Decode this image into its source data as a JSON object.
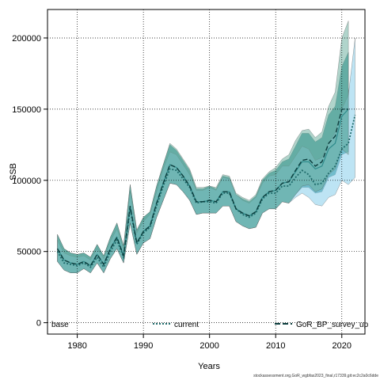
{
  "chart_data": {
    "type": "line",
    "title": "",
    "xlabel": "Years",
    "ylabel": "SSB",
    "xlim": [
      1975.5,
      2023.5
    ],
    "ylim": [
      -8000,
      220000
    ],
    "x_ticks": [
      1980,
      1990,
      2000,
      2010,
      2020
    ],
    "y_ticks": [
      0,
      50000,
      100000,
      150000,
      200000
    ],
    "grid": true,
    "legend_position": "bottom",
    "colors": {
      "base": "#2e8b8b",
      "base_band": "#3a9a9a",
      "current": "#1f6b6b",
      "current_band": "#87ceeb",
      "survey_up": "#0b3d3d",
      "survey_up_band": "#6fb0a0",
      "survey_up_band_top": "#b0a070"
    },
    "series": [
      {
        "name": "base",
        "x": [
          1977,
          1978,
          1979,
          1980,
          1981,
          1982,
          1983,
          1984,
          1985,
          1986,
          1987,
          1988,
          1989,
          1990,
          1991,
          1992,
          1993,
          1994,
          1995,
          1996,
          1997,
          1998,
          1999,
          2000,
          2001,
          2002,
          2003,
          2004,
          2005,
          2006,
          2007,
          2008,
          2009,
          2010,
          2011,
          2012,
          2013,
          2014,
          2015,
          2016,
          2017,
          2018,
          2019,
          2020,
          2021
        ],
        "values": [
          52000,
          44000,
          42000,
          41000,
          43000,
          40000,
          48000,
          41000,
          52000,
          60000,
          47000,
          82000,
          56000,
          64000,
          68000,
          84000,
          98000,
          111000,
          109000,
          103000,
          96000,
          85000,
          85000,
          86000,
          85000,
          92000,
          92000,
          80000,
          77000,
          75000,
          78000,
          88000,
          92000,
          93000,
          98000,
          99000,
          106000,
          113000,
          113000,
          108000,
          110000,
          122000,
          126000,
          145000,
          150000
        ],
        "lower": [
          43000,
          37000,
          35000,
          35000,
          38000,
          35000,
          42000,
          35000,
          45000,
          52000,
          42000,
          70000,
          48000,
          56000,
          59000,
          74000,
          86000,
          98000,
          97000,
          92000,
          86000,
          76000,
          77000,
          77000,
          77000,
          82000,
          82000,
          71000,
          68000,
          66000,
          67000,
          77000,
          80000,
          80000,
          85000,
          84000,
          90000,
          95000,
          95000,
          91000,
          92000,
          102000,
          104000,
          118000,
          120000
        ],
        "upper": [
          62000,
          52000,
          49000,
          48000,
          49000,
          46000,
          55000,
          47000,
          60000,
          70000,
          54000,
          97000,
          65000,
          74000,
          78000,
          96000,
          111000,
          125000,
          121000,
          114000,
          107000,
          94000,
          94000,
          96000,
          94000,
          103000,
          102000,
          90000,
          87000,
          85000,
          89000,
          100000,
          105000,
          107000,
          113000,
          115000,
          124000,
          133000,
          133000,
          127000,
          130000,
          146000,
          152000,
          180000,
          190000
        ]
      },
      {
        "name": "current",
        "x": [
          1977,
          1978,
          1979,
          1980,
          1981,
          1982,
          1983,
          1984,
          1985,
          1986,
          1987,
          1988,
          1989,
          1990,
          1991,
          1992,
          1993,
          1994,
          1995,
          1996,
          1997,
          1998,
          1999,
          2000,
          2001,
          2002,
          2003,
          2004,
          2005,
          2006,
          2007,
          2008,
          2009,
          2010,
          2011,
          2012,
          2013,
          2014,
          2015,
          2016,
          2017,
          2018,
          2019,
          2020,
          2021,
          2022
        ],
        "values": [
          50000,
          42000,
          41000,
          40000,
          42000,
          39000,
          46000,
          39000,
          50000,
          58000,
          46000,
          80000,
          55000,
          63000,
          67000,
          82000,
          96000,
          108000,
          107000,
          101000,
          95000,
          84000,
          85000,
          85000,
          84000,
          91000,
          91000,
          80000,
          76000,
          74000,
          77000,
          87000,
          91000,
          91000,
          96000,
          96000,
          102000,
          107000,
          104000,
          97000,
          98000,
          105000,
          110000,
          122000,
          126000,
          146000
        ],
        "lower": [
          43000,
          37000,
          35000,
          35000,
          38000,
          35000,
          42000,
          35000,
          45000,
          52000,
          42000,
          70000,
          48000,
          56000,
          59000,
          74000,
          86000,
          98000,
          97000,
          92000,
          86000,
          76000,
          77000,
          77000,
          77000,
          82000,
          82000,
          71000,
          68000,
          66000,
          67000,
          77000,
          80000,
          80000,
          85000,
          84000,
          88000,
          91000,
          88000,
          83000,
          82000,
          88000,
          90000,
          100000,
          97000,
          102000
        ],
        "upper": [
          58000,
          49000,
          47000,
          46000,
          47000,
          44000,
          52000,
          45000,
          57000,
          66000,
          52000,
          92000,
          63000,
          71000,
          76000,
          92000,
          108000,
          120000,
          118000,
          111000,
          104000,
          93000,
          93000,
          95000,
          93000,
          102000,
          101000,
          90000,
          86000,
          84000,
          88000,
          98000,
          103000,
          104000,
          110000,
          110000,
          117000,
          124000,
          122000,
          114000,
          116000,
          126000,
          134000,
          150000,
          160000,
          200000
        ]
      },
      {
        "name": "GoR_BP_survey_up",
        "x": [
          1977,
          1978,
          1979,
          1980,
          1981,
          1982,
          1983,
          1984,
          1985,
          1986,
          1987,
          1988,
          1989,
          1990,
          1991,
          1992,
          1993,
          1994,
          1995,
          1996,
          1997,
          1998,
          1999,
          2000,
          2001,
          2002,
          2003,
          2004,
          2005,
          2006,
          2007,
          2008,
          2009,
          2010,
          2011,
          2012,
          2013,
          2014,
          2015,
          2016,
          2017,
          2018,
          2019,
          2020,
          2021
        ],
        "values": [
          52000,
          44000,
          42000,
          41000,
          43000,
          40000,
          48000,
          41000,
          52000,
          60000,
          47000,
          82000,
          56000,
          64000,
          68000,
          84000,
          98000,
          111000,
          109000,
          103000,
          96000,
          85000,
          85000,
          86000,
          85000,
          92000,
          92000,
          80000,
          77000,
          75000,
          78000,
          88000,
          92000,
          93000,
          98000,
          99000,
          107000,
          114000,
          115000,
          110000,
          113000,
          126000,
          131000,
          150000,
          150000
        ],
        "lower": [
          43000,
          37000,
          35000,
          35000,
          38000,
          35000,
          42000,
          35000,
          45000,
          52000,
          42000,
          70000,
          48000,
          56000,
          59000,
          74000,
          86000,
          98000,
          97000,
          92000,
          86000,
          76000,
          77000,
          77000,
          77000,
          82000,
          82000,
          71000,
          68000,
          66000,
          67000,
          77000,
          80000,
          80000,
          85000,
          84000,
          90000,
          96000,
          97000,
          92000,
          94000,
          104000,
          108000,
          122000,
          118000
        ],
        "upper": [
          62000,
          52000,
          49000,
          48000,
          49000,
          46000,
          55000,
          47000,
          60000,
          70000,
          54000,
          97000,
          65000,
          74000,
          78000,
          96000,
          111000,
          126000,
          122000,
          115000,
          108000,
          95000,
          95000,
          96000,
          95000,
          104000,
          103000,
          91000,
          88000,
          86000,
          90000,
          101000,
          106000,
          109000,
          115000,
          118000,
          128000,
          135000,
          136000,
          130000,
          134000,
          152000,
          162000,
          200000,
          212000
        ]
      }
    ],
    "legend": [
      "base",
      "current",
      "GoR_BP_survey_up"
    ],
    "source": "stockassessment.org,GoR_wgbfas2023_final,r17339,git:ec2c2a0c6dde"
  }
}
